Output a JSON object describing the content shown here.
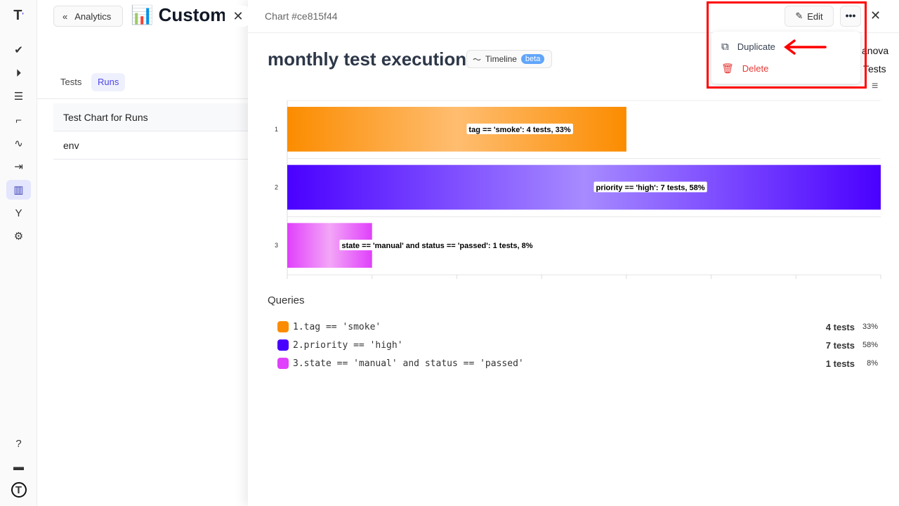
{
  "sidebar": {
    "items": [
      "logo",
      "checks",
      "runs",
      "test-plans",
      "steps",
      "pulse",
      "import",
      "analytics",
      "branches",
      "settings",
      "help",
      "projects",
      "account"
    ],
    "active": "analytics"
  },
  "page": {
    "back_label": "Analytics",
    "title": "📊 Custom C",
    "tabs": [
      "Tests",
      "Runs"
    ],
    "active_tab": "Runs",
    "list": [
      "Test Chart for Runs",
      "env"
    ]
  },
  "drawer": {
    "chart_id": "Chart #ce815f44",
    "edit_label": "Edit",
    "more_label": "•••",
    "title": "monthly test execution",
    "timeline_label": "Timeline",
    "beta_label": "beta",
    "partial_right": [
      "anova",
      "Tests"
    ]
  },
  "menu": {
    "items": [
      {
        "label": "Duplicate",
        "color": "#374151"
      },
      {
        "label": "Delete",
        "color": "#e53935"
      }
    ]
  },
  "queries_title": "Queries",
  "chart_data": {
    "type": "bar",
    "orientation": "horizontal",
    "categories": [
      "1",
      "2",
      "3"
    ],
    "series": [
      {
        "values": [
          4,
          7,
          1
        ]
      }
    ],
    "labels": [
      "tag == 'smoke': 4 tests, 33%",
      "priority == 'high': 7 tests, 58%",
      "state == 'manual' and status == 'passed': 1 tests, 8%"
    ],
    "colors": [
      "#fb8c00",
      "#4a00ff",
      "#e040fb"
    ],
    "xlim": [
      0,
      7
    ],
    "grid": true
  },
  "legend": [
    {
      "query": "1.tag == 'smoke'",
      "count": "4 tests",
      "pct": "33%",
      "color": "#fb8c00"
    },
    {
      "query": "2.priority == 'high'",
      "count": "7 tests",
      "pct": "58%",
      "color": "#4a00ff"
    },
    {
      "query": "3.state == 'manual' and status == 'passed'",
      "count": "1 tests",
      "pct": "8%",
      "color": "#e040fb"
    }
  ]
}
